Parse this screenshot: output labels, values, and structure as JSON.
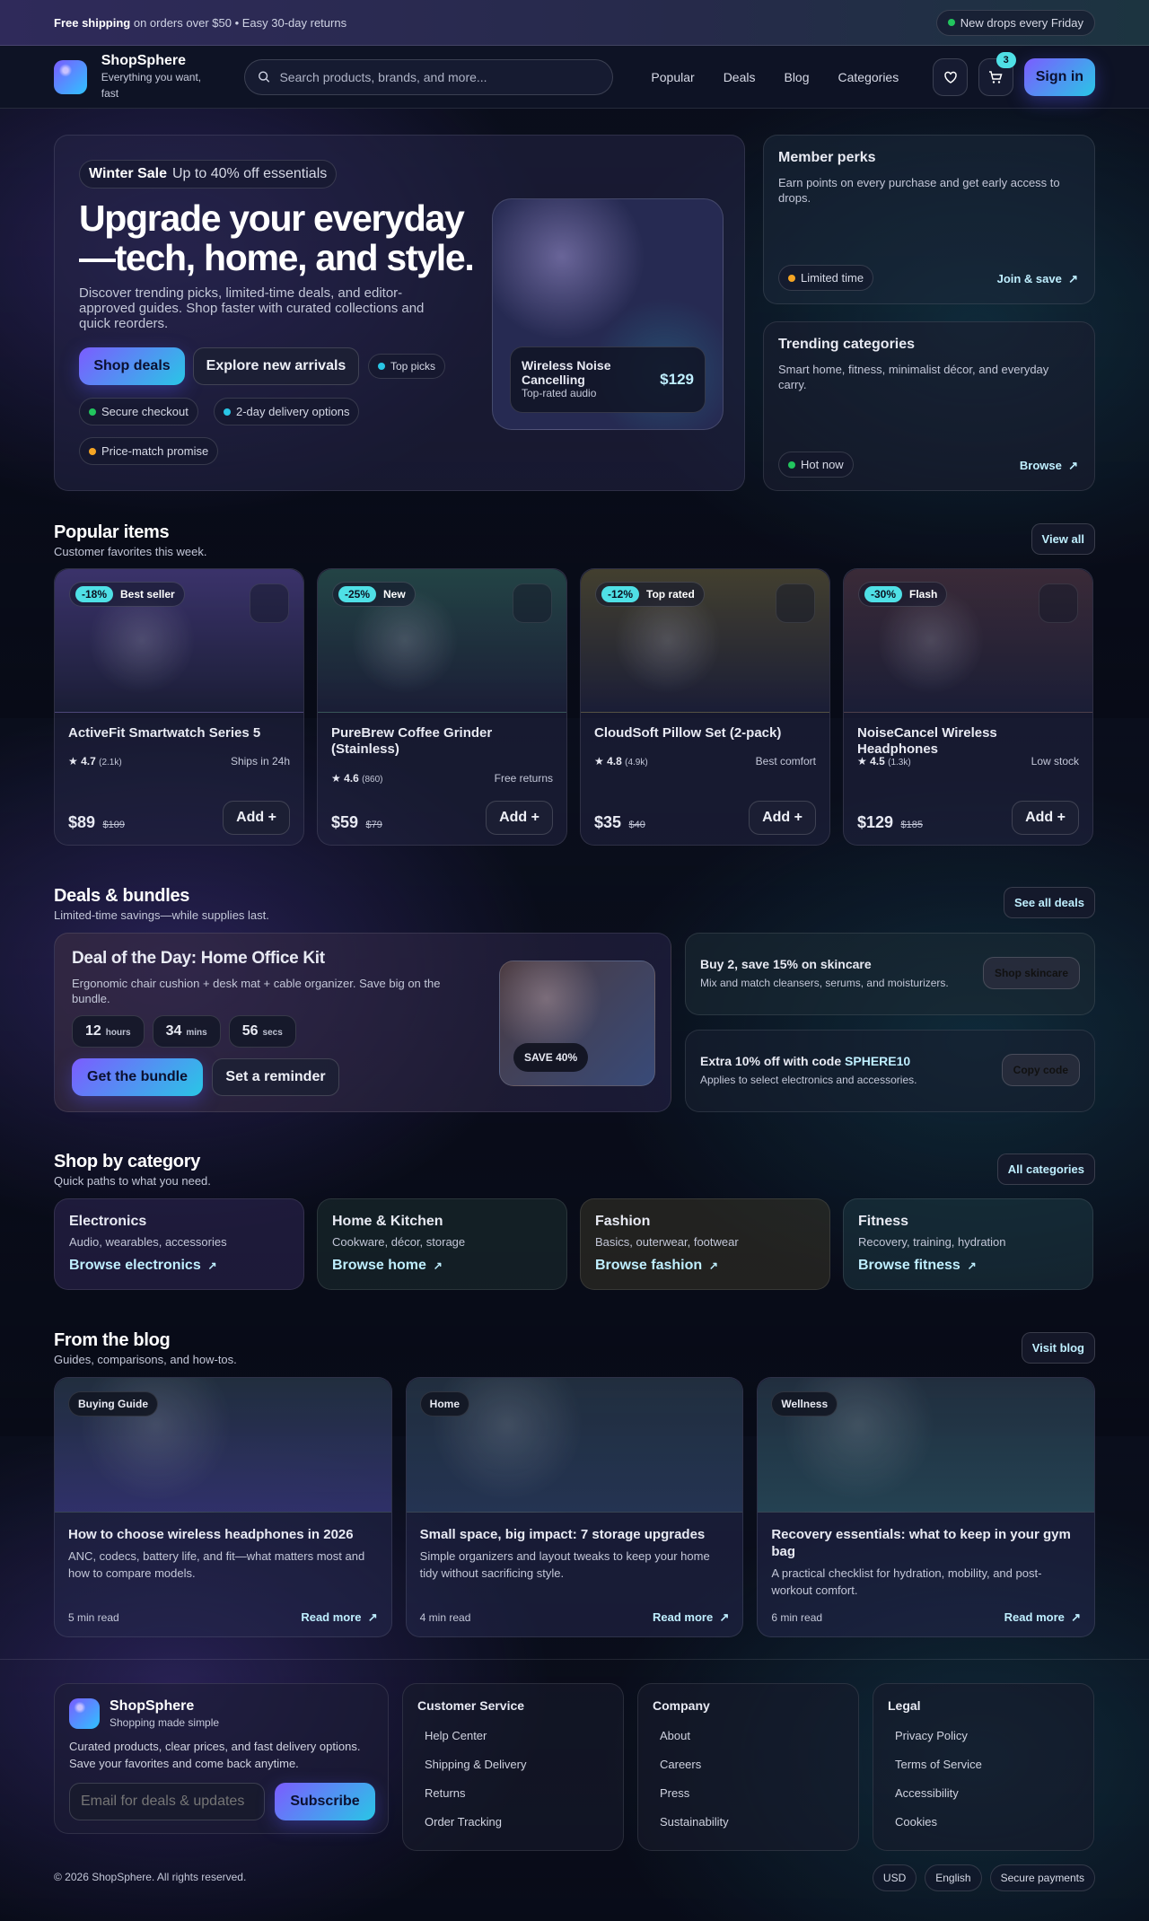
{
  "topbar": {
    "promo_bold": "Free shipping",
    "promo_rest": " on orders over $50 • Easy 30-day returns",
    "drops": "New drops every Friday"
  },
  "header": {
    "brand": "ShopSphere",
    "tagline": "Everything you want, fast",
    "search_placeholder": "Search products, brands, and more...",
    "nav": [
      "Popular",
      "Deals",
      "Blog",
      "Categories"
    ],
    "cart_count": "3",
    "sign_in": "Sign in"
  },
  "hero": {
    "sale_bold": "Winter Sale",
    "sale_rest": "Up to 40% off essentials",
    "title_1": "Upgrade your everyday",
    "title_2": "—tech, home, and style.",
    "desc": "Discover trending picks, limited-time deals, and editor-approved guides. Shop faster with curated collections and quick reorders.",
    "shop_deals": "Shop deals",
    "explore": "Explore new arrivals",
    "chips": [
      "Top picks",
      "Secure checkout",
      "2-day delivery options",
      "Price-match promise"
    ],
    "product": {
      "name": "Wireless Noise Cancelling",
      "sub": "Top-rated audio",
      "price": "$129"
    }
  },
  "side": [
    {
      "title": "Member perks",
      "desc": "Earn points on every purchase and get early access to drops.",
      "chip": "Limited time",
      "chip_color": "#f5a524",
      "link": "Join & save"
    },
    {
      "title": "Trending categories",
      "desc": "Smart home, fitness, minimalist décor, and everyday carry.",
      "chip": "Hot now",
      "chip_color": "#22c55e",
      "link": "Browse"
    }
  ],
  "popular": {
    "title": "Popular items",
    "sub": "Customer favorites this week.",
    "view_all": "View all",
    "items": [
      {
        "disc": "-18%",
        "tag": "Best seller",
        "name": "ActiveFit Smartwatch Series 5",
        "rating": "4.7",
        "reviews": "(2.1k)",
        "note": "Ships in 24h",
        "price": "$89",
        "old": "$109",
        "tint": "#5b4aa0"
      },
      {
        "disc": "-25%",
        "tag": "New",
        "name": "PureBrew Coffee Grinder (Stainless)",
        "rating": "4.6",
        "reviews": "(860)",
        "note": "Free returns",
        "price": "$59",
        "old": "$79",
        "tint": "#2f6a5a"
      },
      {
        "disc": "-12%",
        "tag": "Top rated",
        "name": "CloudSoft Pillow Set (2-pack)",
        "rating": "4.8",
        "reviews": "(4.9k)",
        "note": "Best comfort",
        "price": "$35",
        "old": "$40",
        "tint": "#6a6230"
      },
      {
        "disc": "-30%",
        "tag": "Flash",
        "name": "NoiseCancel Wireless Headphones",
        "rating": "4.5",
        "reviews": "(1.3k)",
        "note": "Low stock",
        "price": "$129",
        "old": "$185",
        "tint": "#5a3a40"
      }
    ],
    "add": "Add"
  },
  "deals": {
    "title": "Deals & bundles",
    "sub": "Limited-time savings—while supplies last.",
    "see_all": "See all deals",
    "main": {
      "title": "Deal of the Day: Home Office Kit",
      "desc": "Ergonomic chair cushion + desk mat + cable organizer. Save big on the bundle.",
      "timer": [
        {
          "v": "12",
          "u": "hours"
        },
        {
          "v": "34",
          "u": "mins"
        },
        {
          "v": "56",
          "u": "secs"
        }
      ],
      "cta": "Get the bundle",
      "reminder": "Set a reminder",
      "save": "SAVE 40%"
    },
    "skincare": {
      "title": "Buy 2, save 15% on skincare",
      "desc": "Mix and match cleansers, serums, and moisturizers.",
      "btn": "Shop skincare"
    },
    "code": {
      "title_pre": "Extra 10% off with code ",
      "code": "SPHERE10",
      "desc": "Applies to select electronics and accessories.",
      "btn": "Copy code"
    }
  },
  "categories": {
    "title": "Shop by category",
    "sub": "Quick paths to what you need.",
    "all": "All categories",
    "items": [
      {
        "name": "Electronics",
        "desc": "Audio, wearables, accessories",
        "link": "Browse electronics"
      },
      {
        "name": "Home & Kitchen",
        "desc": "Cookware, décor, storage",
        "link": "Browse home"
      },
      {
        "name": "Fashion",
        "desc": "Basics, outerwear, footwear",
        "link": "Browse fashion"
      },
      {
        "name": "Fitness",
        "desc": "Recovery, training, hydration",
        "link": "Browse fitness"
      }
    ]
  },
  "blog": {
    "title": "From the blog",
    "sub": "Guides, comparisons, and how-tos.",
    "visit": "Visit blog",
    "read_more": "Read more",
    "posts": [
      {
        "tag": "Buying Guide",
        "title": "How to choose wireless headphones in 2026",
        "desc": "ANC, codecs, battery life, and fit—what matters most and how to compare models.",
        "time": "5 min read"
      },
      {
        "tag": "Home",
        "title": "Small space, big impact: 7 storage upgrades",
        "desc": "Simple organizers and layout tweaks to keep your home tidy without sacrificing style.",
        "time": "4 min read"
      },
      {
        "tag": "Wellness",
        "title": "Recovery essentials: what to keep in your gym bag",
        "desc": "A practical checklist for hydration, mobility, and post-workout comfort.",
        "time": "6 min read"
      }
    ]
  },
  "footer": {
    "brand": "ShopSphere",
    "tagline": "Shopping made simple",
    "desc": "Curated products, clear prices, and fast delivery options. Save your favorites and come back anytime.",
    "email_placeholder": "Email for deals & updates",
    "subscribe": "Subscribe",
    "cols": [
      {
        "title": "Customer Service",
        "links": [
          "Help Center",
          "Shipping & Delivery",
          "Returns",
          "Order Tracking"
        ]
      },
      {
        "title": "Company",
        "links": [
          "About",
          "Careers",
          "Press",
          "Sustainability"
        ]
      },
      {
        "title": "Legal",
        "links": [
          "Privacy Policy",
          "Terms of Service",
          "Accessibility",
          "Cookies"
        ]
      }
    ],
    "copyright": "© 2026 ShopSphere. All rights reserved.",
    "chips": [
      "USD",
      "English",
      "Secure payments"
    ]
  },
  "colors": {
    "accent_start": "#7b5cff",
    "accent_end": "#29c6e6",
    "cyan": "#4fe0e6",
    "green": "#22c55e",
    "orange": "#f5a524"
  }
}
